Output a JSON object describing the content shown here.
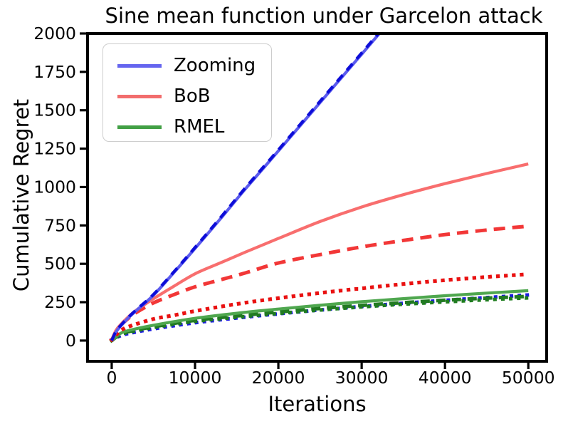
{
  "chart_data": {
    "type": "line",
    "title": "Sine mean function under Garcelon attack",
    "xlabel": "Iterations",
    "ylabel": "Cumulative Regret",
    "xlim": [
      -2900,
      52200
    ],
    "ylim": [
      -135,
      2000
    ],
    "xticks": [
      0,
      10000,
      20000,
      30000,
      40000,
      50000
    ],
    "yticks": [
      0,
      250,
      500,
      750,
      1000,
      1250,
      1500,
      1750,
      2000
    ],
    "grid": false,
    "legend": {
      "position": "upper left",
      "entries": [
        {
          "label": "Zooming",
          "color": "#6565ef"
        },
        {
          "label": "BoB",
          "color": "#f26d6d"
        },
        {
          "label": "RMEL",
          "color": "#42a045"
        }
      ]
    },
    "series": [
      {
        "name": "Zooming-dotted",
        "color": "#1a1ae0",
        "style": "dotted",
        "width": 5,
        "dash": "0.1 11",
        "points": [
          [
            0,
            5
          ],
          [
            1000,
            30
          ],
          [
            2000,
            46
          ],
          [
            5000,
            76
          ],
          [
            10000,
            116
          ],
          [
            15000,
            147
          ],
          [
            20000,
            174
          ],
          [
            25000,
            199
          ],
          [
            30000,
            222
          ],
          [
            35000,
            243
          ],
          [
            40000,
            262
          ],
          [
            45000,
            280
          ],
          [
            50000,
            297
          ]
        ]
      },
      {
        "name": "RMEL-dotted",
        "color": "#1e7d1e",
        "style": "dotted",
        "width": 5,
        "dash": "0.1 11",
        "points": [
          [
            0,
            0
          ],
          [
            1000,
            37
          ],
          [
            2000,
            54
          ],
          [
            5000,
            85
          ],
          [
            10000,
            125
          ],
          [
            15000,
            152
          ],
          [
            20000,
            177
          ],
          [
            25000,
            199
          ],
          [
            30000,
            219
          ],
          [
            35000,
            237
          ],
          [
            40000,
            252
          ],
          [
            45000,
            266
          ],
          [
            50000,
            278
          ]
        ]
      },
      {
        "name": "RMEL-dashed",
        "color": "#227a22",
        "style": "dashed",
        "width": 5,
        "dash": "13 9",
        "points": [
          [
            0,
            0
          ],
          [
            1000,
            40
          ],
          [
            2000,
            58
          ],
          [
            5000,
            90
          ],
          [
            10000,
            132
          ],
          [
            15000,
            160
          ],
          [
            20000,
            186
          ],
          [
            25000,
            209
          ],
          [
            30000,
            229
          ],
          [
            35000,
            247
          ],
          [
            40000,
            263
          ],
          [
            45000,
            276
          ],
          [
            50000,
            288
          ]
        ]
      },
      {
        "name": "RMEL-solid",
        "color": "#4fa74f",
        "style": "solid",
        "width": 4.2,
        "points": [
          [
            0,
            0
          ],
          [
            1000,
            45
          ],
          [
            2000,
            65
          ],
          [
            5000,
            100
          ],
          [
            10000,
            145
          ],
          [
            15000,
            178
          ],
          [
            20000,
            205
          ],
          [
            25000,
            230
          ],
          [
            30000,
            253
          ],
          [
            35000,
            273
          ],
          [
            40000,
            292
          ],
          [
            45000,
            309
          ],
          [
            50000,
            325
          ]
        ]
      },
      {
        "name": "BoB-dotted",
        "color": "#e91111",
        "style": "dotted",
        "width": 5.2,
        "dash": "0.1 11",
        "points": [
          [
            0,
            5
          ],
          [
            1000,
            60
          ],
          [
            2000,
            90
          ],
          [
            5000,
            140
          ],
          [
            7500,
            165
          ],
          [
            10000,
            192
          ],
          [
            15000,
            238
          ],
          [
            20000,
            276
          ],
          [
            25000,
            310
          ],
          [
            30000,
            340
          ],
          [
            35000,
            368
          ],
          [
            40000,
            393
          ],
          [
            45000,
            414
          ],
          [
            50000,
            432
          ]
        ]
      },
      {
        "name": "BoB-dashed",
        "color": "#f23737",
        "style": "dashed",
        "width": 5,
        "dash": "16 10",
        "points": [
          [
            0,
            0
          ],
          [
            500,
            60
          ],
          [
            1000,
            95
          ],
          [
            2000,
            145
          ],
          [
            3000,
            185
          ],
          [
            5000,
            245
          ],
          [
            7500,
            300
          ],
          [
            10000,
            350
          ],
          [
            13000,
            395
          ],
          [
            16000,
            440
          ],
          [
            20000,
            505
          ],
          [
            25000,
            560
          ],
          [
            30000,
            610
          ],
          [
            35000,
            652
          ],
          [
            40000,
            690
          ],
          [
            45000,
            720
          ],
          [
            50000,
            745
          ]
        ]
      },
      {
        "name": "BoB-solid",
        "color": "#f86e6e",
        "style": "solid",
        "width": 4.2,
        "points": [
          [
            0,
            0
          ],
          [
            500,
            65
          ],
          [
            1000,
            100
          ],
          [
            2000,
            155
          ],
          [
            3000,
            200
          ],
          [
            5000,
            272
          ],
          [
            7500,
            355
          ],
          [
            10000,
            435
          ],
          [
            13000,
            505
          ],
          [
            16000,
            575
          ],
          [
            20000,
            665
          ],
          [
            25000,
            775
          ],
          [
            30000,
            870
          ],
          [
            35000,
            950
          ],
          [
            40000,
            1022
          ],
          [
            45000,
            1088
          ],
          [
            50000,
            1150
          ]
        ]
      },
      {
        "name": "Zooming-solid",
        "color": "#5b5bee",
        "style": "solid",
        "width": 4.2,
        "points": [
          [
            0,
            0
          ],
          [
            500,
            55
          ],
          [
            1000,
            90
          ],
          [
            2000,
            148
          ],
          [
            3000,
            198
          ],
          [
            5000,
            295
          ],
          [
            7500,
            445
          ],
          [
            10000,
            600
          ],
          [
            13000,
            790
          ],
          [
            16000,
            985
          ],
          [
            20000,
            1235
          ],
          [
            25000,
            1550
          ],
          [
            30000,
            1865
          ],
          [
            33000,
            2055
          ]
        ]
      },
      {
        "name": "Zooming-dashed",
        "color": "#0d0dd8",
        "style": "dashed",
        "width": 4.2,
        "dash": "12 9",
        "points": [
          [
            0,
            0
          ],
          [
            500,
            58
          ],
          [
            1000,
            94
          ],
          [
            2000,
            152
          ],
          [
            3000,
            203
          ],
          [
            5000,
            300
          ],
          [
            7500,
            450
          ],
          [
            10000,
            606
          ],
          [
            13000,
            797
          ],
          [
            16000,
            992
          ],
          [
            20000,
            1242
          ],
          [
            25000,
            1558
          ],
          [
            30000,
            1873
          ],
          [
            33000,
            2063
          ]
        ]
      }
    ]
  }
}
